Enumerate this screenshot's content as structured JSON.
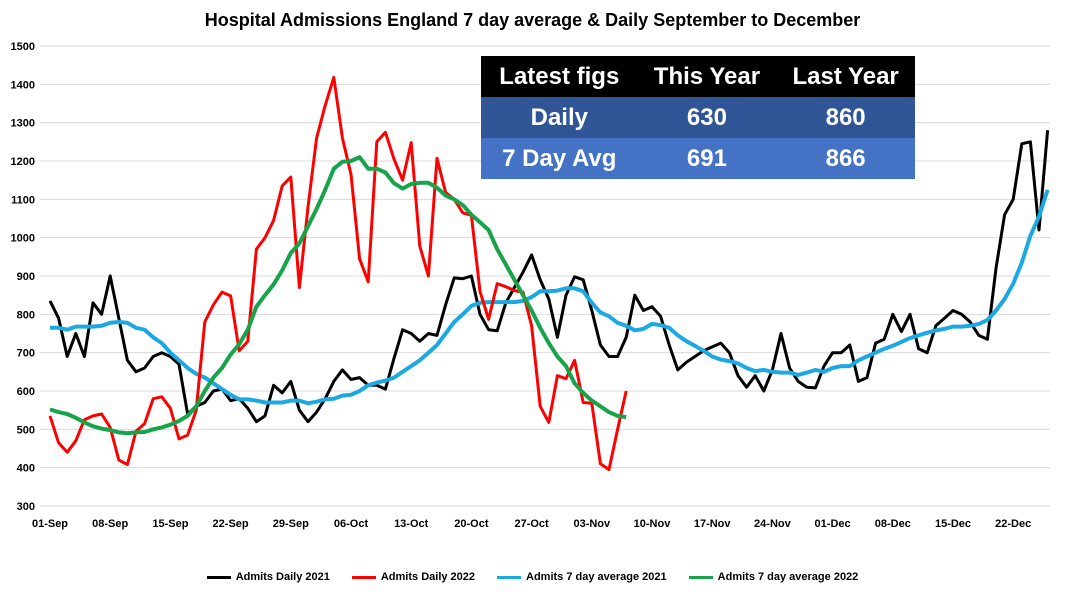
{
  "chart_data": {
    "type": "line",
    "title": "Hospital Admissions England 7 day average & Daily September to December",
    "xlabel": "",
    "ylabel": "",
    "ylim": [
      300,
      1500
    ],
    "yticks": [
      "300",
      "400",
      "500",
      "600",
      "700",
      "800",
      "900",
      "1000",
      "1100",
      "1200",
      "1300",
      "1400",
      "1500"
    ],
    "xticks": [
      "01-Sep",
      "08-Sep",
      "15-Sep",
      "22-Sep",
      "29-Sep",
      "06-Oct",
      "13-Oct",
      "20-Oct",
      "27-Oct",
      "03-Nov",
      "10-Nov",
      "17-Nov",
      "24-Nov",
      "01-Dec",
      "08-Dec",
      "15-Dec",
      "22-Dec"
    ],
    "x_start": "01-Sep",
    "x_unit": "day",
    "grid": true,
    "legend": "bottom",
    "series": [
      {
        "name": "Admits Daily 2021",
        "color": "#000000",
        "values": [
          835,
          790,
          690,
          750,
          690,
          830,
          800,
          900,
          790,
          680,
          650,
          660,
          690,
          700,
          690,
          670,
          540,
          560,
          570,
          600,
          605,
          575,
          580,
          555,
          520,
          535,
          615,
          595,
          625,
          550,
          520,
          545,
          580,
          625,
          655,
          630,
          635,
          615,
          615,
          605,
          685,
          760,
          750,
          730,
          750,
          745,
          825,
          895,
          893,
          900,
          800,
          760,
          757,
          830,
          870,
          910,
          955,
          890,
          840,
          740,
          850,
          898,
          890,
          810,
          720,
          690,
          690,
          740,
          850,
          810,
          820,
          795,
          720,
          655,
          675,
          690,
          705,
          715,
          725,
          700,
          640,
          610,
          640,
          600,
          655,
          750,
          660,
          625,
          610,
          608,
          665,
          700,
          700,
          720,
          625,
          635,
          725,
          735,
          800,
          755,
          800,
          710,
          700,
          770,
          790,
          810,
          800,
          780,
          745,
          735,
          920,
          1060,
          1100,
          1245,
          1250,
          1020,
          1280
        ]
      },
      {
        "name": "Admits Daily 2022",
        "color": "#ff0000",
        "values": [
          535,
          465,
          440,
          470,
          525,
          535,
          540,
          505,
          420,
          408,
          495,
          515,
          580,
          585,
          555,
          475,
          485,
          550,
          780,
          825,
          858,
          848,
          705,
          730,
          970,
          1000,
          1045,
          1135,
          1158,
          870,
          1080,
          1260,
          1345,
          1418,
          1260,
          1165,
          945,
          885,
          1250,
          1275,
          1205,
          1150,
          1248,
          978,
          900,
          1207,
          1118,
          1100,
          1065,
          1058,
          860,
          787,
          880,
          872,
          862,
          858,
          770,
          560,
          518,
          640,
          632,
          680,
          570,
          568,
          410,
          395,
          500,
          600
        ]
      },
      {
        "name": "Admits 7 day average 2021",
        "color": "#1ca9e1",
        "values": [
          765,
          765,
          760,
          768,
          768,
          768,
          770,
          778,
          780,
          778,
          765,
          760,
          740,
          725,
          700,
          680,
          660,
          645,
          635,
          620,
          605,
          590,
          578,
          578,
          575,
          570,
          570,
          570,
          575,
          575,
          568,
          572,
          578,
          580,
          588,
          590,
          600,
          615,
          622,
          627,
          635,
          650,
          665,
          680,
          700,
          720,
          750,
          780,
          800,
          822,
          830,
          832,
          832,
          832,
          832,
          835,
          845,
          860,
          860,
          862,
          868,
          868,
          860,
          830,
          805,
          795,
          778,
          770,
          758,
          762,
          775,
          772,
          765,
          745,
          730,
          718,
          705,
          690,
          682,
          678,
          672,
          660,
          652,
          655,
          650,
          648,
          648,
          642,
          648,
          655,
          650,
          660,
          665,
          665,
          680,
          690,
          700,
          710,
          718,
          728,
          738,
          745,
          752,
          758,
          762,
          768,
          768,
          770,
          775,
          785,
          810,
          840,
          880,
          935,
          1005,
          1055,
          1125
        ]
      },
      {
        "name": "Admits 7 day average 2022",
        "color": "#16a34a",
        "values": [
          552,
          545,
          540,
          530,
          518,
          508,
          502,
          498,
          492,
          490,
          492,
          493,
          500,
          505,
          512,
          522,
          535,
          560,
          600,
          635,
          660,
          695,
          722,
          760,
          820,
          850,
          878,
          915,
          960,
          985,
          1030,
          1075,
          1125,
          1180,
          1198,
          1200,
          1210,
          1180,
          1180,
          1170,
          1142,
          1128,
          1140,
          1143,
          1143,
          1130,
          1110,
          1100,
          1085,
          1060,
          1040,
          1020,
          970,
          930,
          890,
          850,
          810,
          765,
          725,
          690,
          665,
          620,
          595,
          575,
          560,
          545,
          535,
          532
        ]
      }
    ]
  },
  "table": {
    "headers": [
      "Latest figs",
      "This Year",
      "Last Year"
    ],
    "rows": [
      {
        "label": "Daily",
        "this_year": "630",
        "last_year": "860"
      },
      {
        "label": "7 Day Avg",
        "this_year": "691",
        "last_year": "866"
      }
    ],
    "colors": {
      "header": "#000000",
      "row1": "#2f5597",
      "row2": "#4472c4"
    }
  }
}
